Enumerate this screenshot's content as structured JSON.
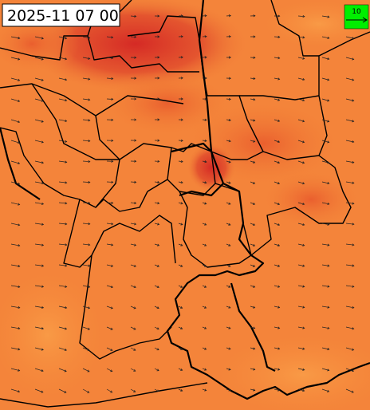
{
  "timestamp": "2025-11 07 00",
  "legend": {
    "label": "10"
  }
}
